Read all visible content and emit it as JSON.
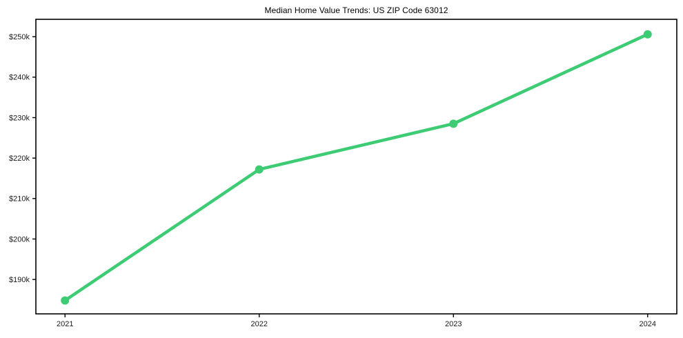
{
  "chart_data": {
    "type": "line",
    "title": "Median Home Value Trends: US ZIP Code 63012",
    "categories": [
      "2021",
      "2022",
      "2023",
      "2024"
    ],
    "x": [
      2021,
      2022,
      2023,
      2024
    ],
    "values": [
      184.8,
      217.2,
      228.5,
      250.6
    ],
    "y_unit": "$k",
    "xlabel": "",
    "ylabel": "",
    "xlim": [
      2020.85,
      2024.15
    ],
    "ylim": [
      181.5,
      254.3
    ],
    "x_ticks": [
      2021,
      2022,
      2023,
      2024
    ],
    "x_tick_labels": [
      "2021",
      "2022",
      "2023",
      "2024"
    ],
    "y_ticks": [
      190,
      200,
      210,
      220,
      230,
      240,
      250
    ],
    "y_tick_labels": [
      "$190k",
      "$200k",
      "$210k",
      "$220k",
      "$230k",
      "$240k",
      "$250k"
    ],
    "grid": false,
    "legend": false,
    "marker": "circle"
  },
  "colors": {
    "line": "#3dcb74",
    "marker": "#3dcb74",
    "spine": "#000000",
    "tick": "#000000",
    "tick_text": "#1a1a1a",
    "title_text": "#000000",
    "background": "#ffffff"
  }
}
